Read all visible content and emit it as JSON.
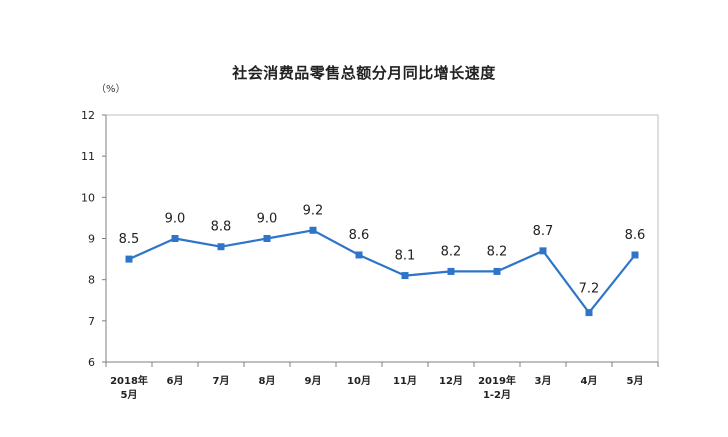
{
  "chart_data": {
    "type": "line",
    "title": "社会消费品零售总额分月同比增长速度",
    "ylabel": "（%）",
    "ylim": [
      6,
      12
    ],
    "yticks": [
      "6",
      "7",
      "8",
      "9",
      "10",
      "11",
      "12"
    ],
    "categories": [
      [
        "2018年",
        "5月"
      ],
      [
        "6月"
      ],
      [
        "7月"
      ],
      [
        "8月"
      ],
      [
        "9月"
      ],
      [
        "10月"
      ],
      [
        "11月"
      ],
      [
        "12月"
      ],
      [
        "2019年",
        "1-2月"
      ],
      [
        "3月"
      ],
      [
        "4月"
      ],
      [
        "5月"
      ]
    ],
    "values": [
      8.5,
      9.0,
      8.8,
      9.0,
      9.2,
      8.6,
      8.1,
      8.2,
      8.2,
      8.7,
      7.2,
      8.6
    ],
    "data_labels": [
      "8.5",
      "9.0",
      "8.8",
      "9.0",
      "9.2",
      "8.6",
      "8.1",
      "8.2",
      "8.2",
      "8.7",
      "7.2",
      "8.6"
    ],
    "grid": false,
    "legend": "none",
    "colors": {
      "line": "#2E75C9",
      "axis": "#7F7F7F",
      "frame": "#BFBFBF",
      "text": "#222222"
    }
  }
}
